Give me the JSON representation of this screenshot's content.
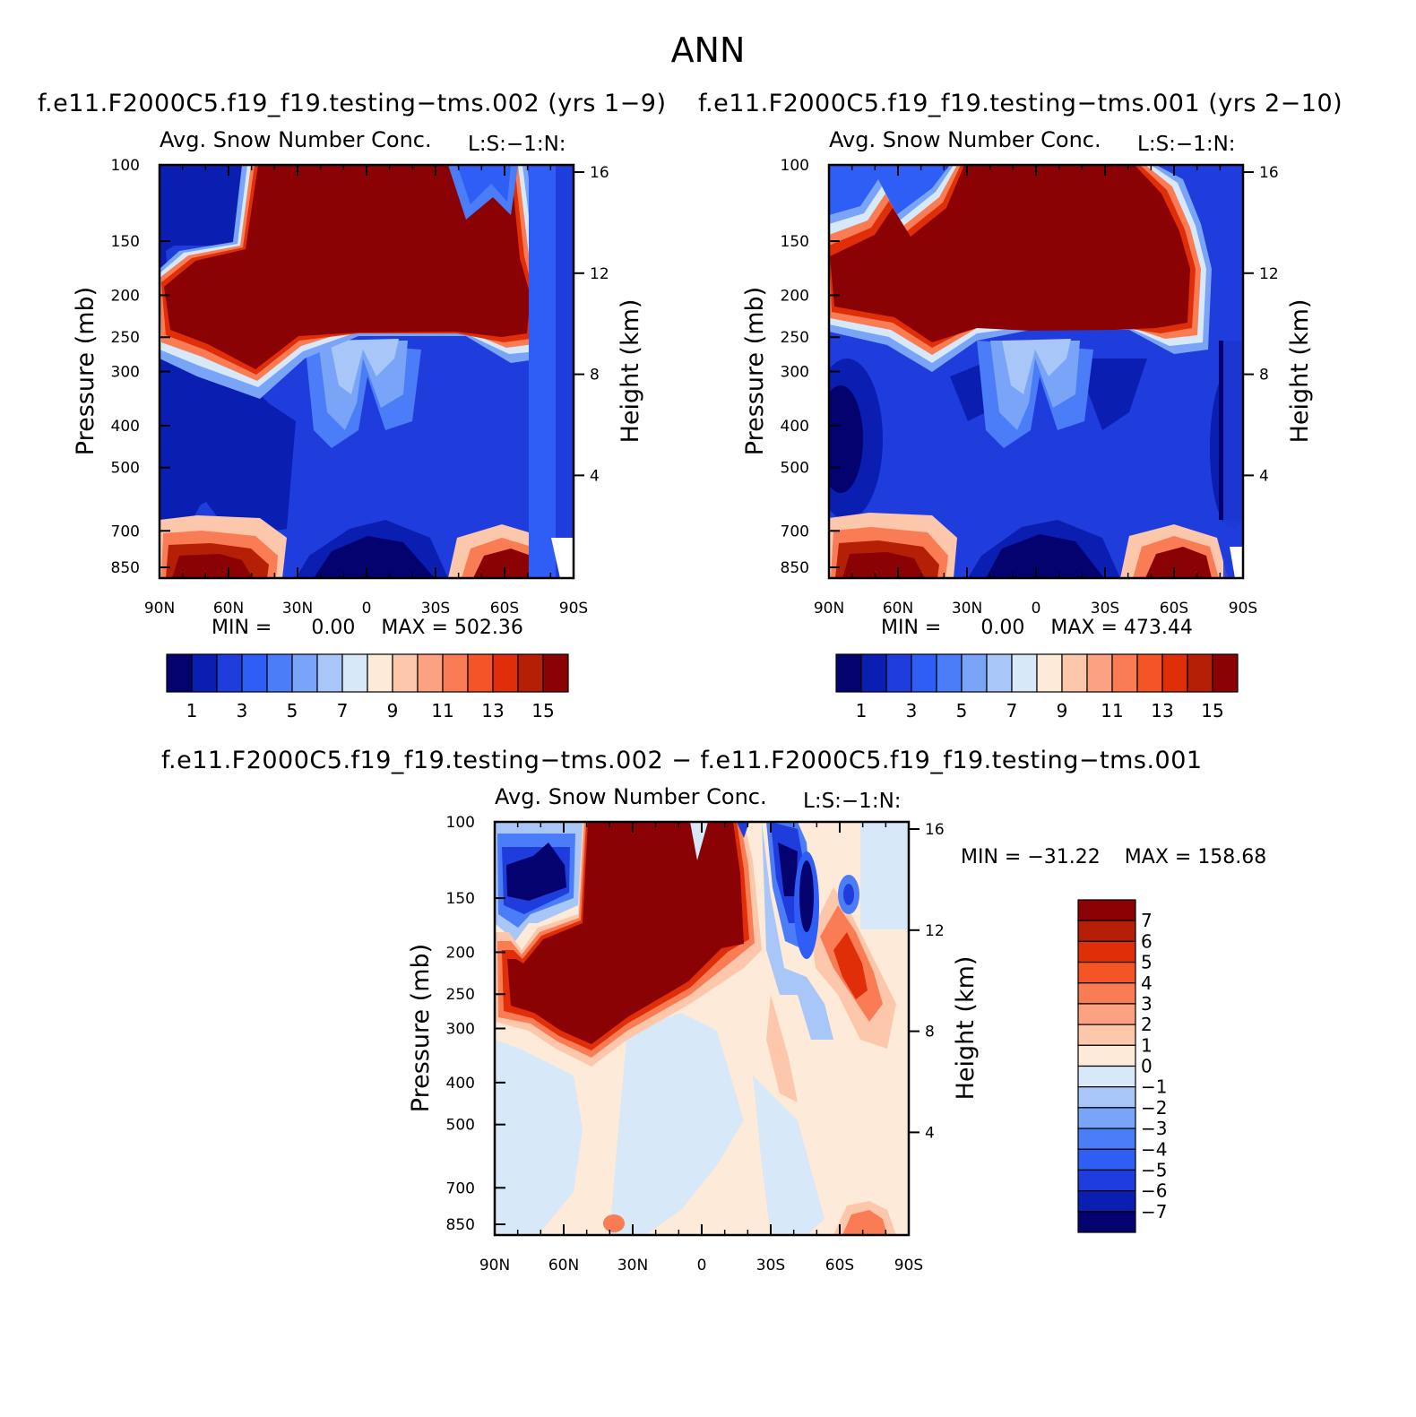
{
  "title": "ANN",
  "colors": {
    "seq": [
      "#04026e",
      "#0a1fb1",
      "#1f3ddc",
      "#2e5ef5",
      "#4a7df7",
      "#7aa4f7",
      "#a8c6f7",
      "#d7e8f8",
      "#feead8",
      "#fdc7ab",
      "#fca282",
      "#fa7c54",
      "#f55426",
      "#df2e08",
      "#b41f05",
      "#8b0204"
    ],
    "diff": [
      "#04026e",
      "#0a1fb1",
      "#1f3ddc",
      "#2e5ef5",
      "#4a7df7",
      "#7aa4f7",
      "#a8c6f7",
      "#d7e8f8",
      "#feead8",
      "#fdc7ab",
      "#fca282",
      "#fa7c54",
      "#f55426",
      "#df2e08",
      "#b41f05",
      "#8b0204"
    ]
  },
  "chart_data": [
    {
      "type": "heatmap",
      "case_title": "f.e11.F2000C5.f19_f19.testing−tms.002 (yrs 1−9)",
      "title": "Avg. Snow Number Conc.",
      "units_label": "L:S:−1:N:",
      "ylabel": "Pressure (mb)",
      "y2label": "Height (km)",
      "x_ticks": [
        "90N",
        "60N",
        "30N",
        "0",
        "30S",
        "60S",
        "90S"
      ],
      "y_ticks": [
        100,
        150,
        200,
        250,
        300,
        400,
        500,
        700,
        850
      ],
      "y2_ticks": [
        16,
        12,
        8,
        4
      ],
      "min_label": "MIN =",
      "min_value": "0.00",
      "max_label": "MAX =",
      "max_value": "502.36",
      "colorbar_labels": [
        "1",
        "3",
        "5",
        "7",
        "9",
        "11",
        "13",
        "15"
      ]
    },
    {
      "type": "heatmap",
      "case_title": "f.e11.F2000C5.f19_f19.testing−tms.001 (yrs 2−10)",
      "title": "Avg. Snow Number Conc.",
      "units_label": "L:S:−1:N:",
      "ylabel": "Pressure (mb)",
      "y2label": "Height (km)",
      "x_ticks": [
        "90N",
        "60N",
        "30N",
        "0",
        "30S",
        "60S",
        "90S"
      ],
      "y_ticks": [
        100,
        150,
        200,
        250,
        300,
        400,
        500,
        700,
        850
      ],
      "y2_ticks": [
        16,
        12,
        8,
        4
      ],
      "min_label": "MIN =",
      "min_value": "0.00",
      "max_label": "MAX =",
      "max_value": "473.44",
      "colorbar_labels": [
        "1",
        "3",
        "5",
        "7",
        "9",
        "11",
        "13",
        "15"
      ]
    },
    {
      "type": "heatmap",
      "case_title": "f.e11.F2000C5.f19_f19.testing−tms.002 − f.e11.F2000C5.f19_f19.testing−tms.001",
      "title": "Avg. Snow Number Conc.",
      "units_label": "L:S:−1:N:",
      "ylabel": "Pressure (mb)",
      "y2label": "Height (km)",
      "x_ticks": [
        "90N",
        "60N",
        "30N",
        "0",
        "30S",
        "60S",
        "90S"
      ],
      "y_ticks": [
        100,
        150,
        200,
        250,
        300,
        400,
        500,
        700,
        850
      ],
      "y2_ticks": [
        16,
        12,
        8,
        4
      ],
      "min_label": "MIN =",
      "min_value": "−31.22",
      "max_label": "MAX =",
      "max_value": "158.68",
      "colorbar_labels": [
        "7",
        "6",
        "5",
        "4",
        "3",
        "2",
        "1",
        "0",
        "−1",
        "−2",
        "−3",
        "−4",
        "−5",
        "−6",
        "−7"
      ]
    }
  ]
}
